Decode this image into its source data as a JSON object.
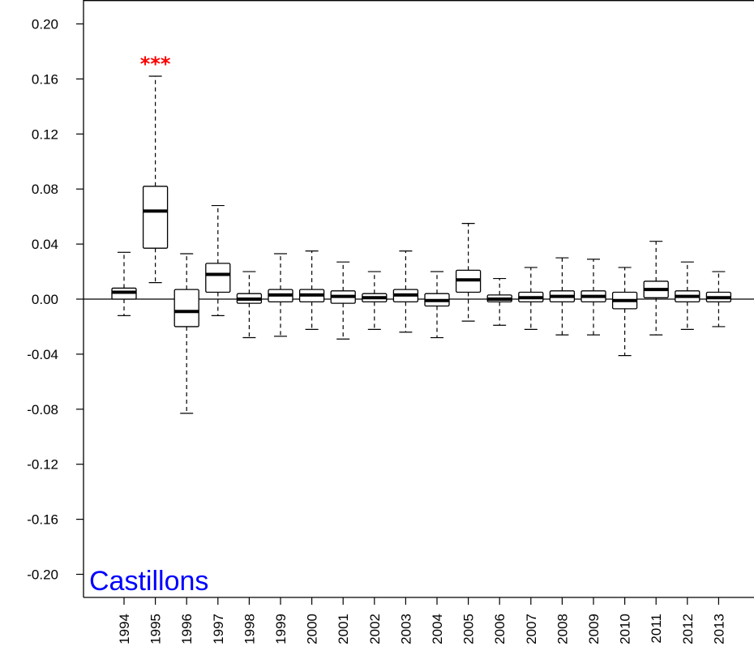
{
  "chart_data": {
    "type": "boxplot",
    "title": "",
    "xlabel": "",
    "ylabel": "",
    "site_label": "Castillons",
    "ylim": [
      -0.22,
      0.22
    ],
    "yticks": [
      0.2,
      0.16,
      0.12,
      0.08,
      0.04,
      0.0,
      -0.04,
      -0.08,
      -0.12,
      -0.16,
      -0.2
    ],
    "ytick_labels": [
      "0.20",
      "0.16",
      "0.12",
      "0.08",
      "0.04",
      "0.00",
      "-0.04",
      "-0.08",
      "-0.12",
      "-0.16",
      "-0.20"
    ],
    "reference_line_y": 0.0,
    "grid": false,
    "colors": {
      "box": "#000000",
      "site_label": "#0000ff",
      "significance": "#ff0000"
    },
    "categories": [
      "1994",
      "1995",
      "1996",
      "1997",
      "1998",
      "1999",
      "2000",
      "2001",
      "2002",
      "2003",
      "2004",
      "2005",
      "2006",
      "2007",
      "2008",
      "2009",
      "2010",
      "2011",
      "2012",
      "2013"
    ],
    "boxes": [
      {
        "year": "1994",
        "whisker_low": -0.012,
        "q1": 0.0,
        "median": 0.005,
        "q3": 0.008,
        "whisker_high": 0.034
      },
      {
        "year": "1995",
        "whisker_low": 0.012,
        "q1": 0.037,
        "median": 0.064,
        "q3": 0.082,
        "whisker_high": 0.162,
        "significance": "***"
      },
      {
        "year": "1996",
        "whisker_low": -0.083,
        "q1": -0.02,
        "median": -0.009,
        "q3": 0.007,
        "whisker_high": 0.033
      },
      {
        "year": "1997",
        "whisker_low": -0.012,
        "q1": 0.005,
        "median": 0.018,
        "q3": 0.026,
        "whisker_high": 0.068
      },
      {
        "year": "1998",
        "whisker_low": -0.028,
        "q1": -0.003,
        "median": 0.0,
        "q3": 0.004,
        "whisker_high": 0.02
      },
      {
        "year": "1999",
        "whisker_low": -0.027,
        "q1": -0.002,
        "median": 0.003,
        "q3": 0.007,
        "whisker_high": 0.033
      },
      {
        "year": "2000",
        "whisker_low": -0.022,
        "q1": -0.002,
        "median": 0.003,
        "q3": 0.007,
        "whisker_high": 0.035
      },
      {
        "year": "2001",
        "whisker_low": -0.029,
        "q1": -0.003,
        "median": 0.002,
        "q3": 0.006,
        "whisker_high": 0.027
      },
      {
        "year": "2002",
        "whisker_low": -0.022,
        "q1": -0.002,
        "median": 0.001,
        "q3": 0.004,
        "whisker_high": 0.02
      },
      {
        "year": "2003",
        "whisker_low": -0.024,
        "q1": -0.002,
        "median": 0.003,
        "q3": 0.007,
        "whisker_high": 0.035
      },
      {
        "year": "2004",
        "whisker_low": -0.028,
        "q1": -0.005,
        "median": -0.001,
        "q3": 0.004,
        "whisker_high": 0.02
      },
      {
        "year": "2005",
        "whisker_low": -0.016,
        "q1": 0.005,
        "median": 0.014,
        "q3": 0.021,
        "whisker_high": 0.055
      },
      {
        "year": "2006",
        "whisker_low": -0.019,
        "q1": -0.002,
        "median": 0.0,
        "q3": 0.003,
        "whisker_high": 0.015
      },
      {
        "year": "2007",
        "whisker_low": -0.022,
        "q1": -0.002,
        "median": 0.001,
        "q3": 0.005,
        "whisker_high": 0.023
      },
      {
        "year": "2008",
        "whisker_low": -0.026,
        "q1": -0.002,
        "median": 0.002,
        "q3": 0.006,
        "whisker_high": 0.03
      },
      {
        "year": "2009",
        "whisker_low": -0.026,
        "q1": -0.002,
        "median": 0.002,
        "q3": 0.006,
        "whisker_high": 0.029
      },
      {
        "year": "2010",
        "whisker_low": -0.041,
        "q1": -0.007,
        "median": -0.001,
        "q3": 0.005,
        "whisker_high": 0.023
      },
      {
        "year": "2011",
        "whisker_low": -0.026,
        "q1": 0.001,
        "median": 0.007,
        "q3": 0.013,
        "whisker_high": 0.042
      },
      {
        "year": "2012",
        "whisker_low": -0.022,
        "q1": -0.002,
        "median": 0.002,
        "q3": 0.006,
        "whisker_high": 0.027
      },
      {
        "year": "2013",
        "whisker_low": -0.02,
        "q1": -0.002,
        "median": 0.001,
        "q3": 0.005,
        "whisker_high": 0.02
      }
    ]
  }
}
